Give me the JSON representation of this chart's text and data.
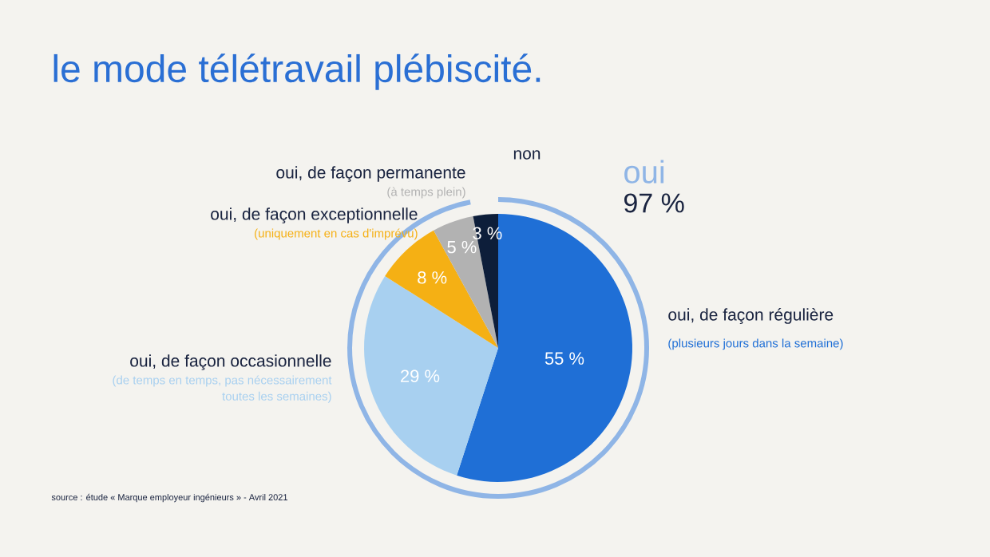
{
  "chart_data": {
    "type": "pie",
    "title": "le mode télétravail plébiscité.",
    "categories": [
      "oui, de façon régulière",
      "oui, de façon occasionnelle",
      "oui, de façon exceptionnelle",
      "oui, de façon permanente",
      "non"
    ],
    "values": [
      55,
      29,
      8,
      5,
      3
    ],
    "colors": [
      "#1f6fd6",
      "#a8d0f0",
      "#f5b014",
      "#b2b2b2",
      "#0d1e3a"
    ],
    "value_labels": [
      "55 %",
      "29 %",
      "8 %",
      "5 %",
      "3 %"
    ],
    "annotations": [
      "(plusieurs jours dans la semaine)",
      "(de temps en temps, pas nécessairement toutes les semaines)",
      "(uniquement en cas d'imprévu)",
      "(à temps plein)",
      "oui",
      "97 %",
      "source : étude « Marque employeur ingénieurs » - Avril 2021"
    ]
  }
}
